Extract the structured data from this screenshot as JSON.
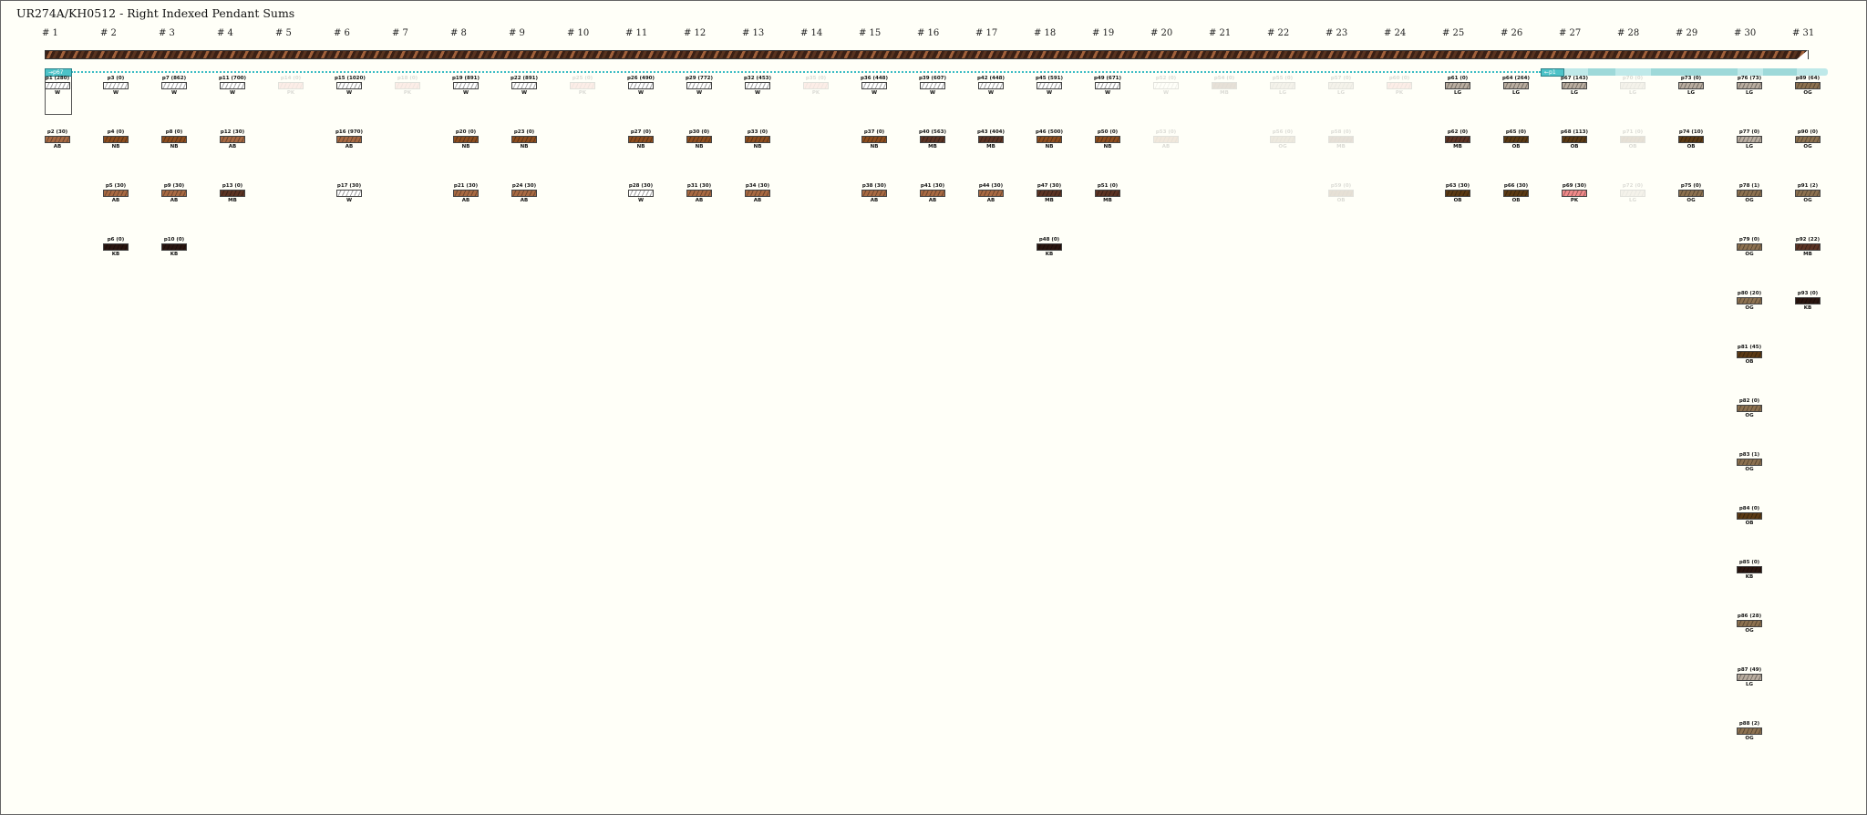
{
  "title": "UR274A/KH0512 - Right Indexed Pendant Sums",
  "links": {
    "p1_to": "→p67",
    "p67_from": "←p1"
  },
  "color_codes": {
    "W": "#ffffff",
    "AB": "#a86a43",
    "NB": "#8e4e1f",
    "MB": "#5c3424",
    "KB": "#2a150f",
    "LG": "#b9ada0",
    "OB": "#5b3a14",
    "OG": "#8c7150",
    "PK": "#f08a8a"
  },
  "accent": "#4dc3c8",
  "columns": [
    {
      "label": "# 1",
      "cords": [
        {
          "id": "p1",
          "v": "280",
          "c": "W"
        },
        {
          "id": "p2",
          "v": "30",
          "c": "AB"
        }
      ]
    },
    {
      "label": "# 2",
      "cords": [
        {
          "id": "p3",
          "v": "0",
          "c": "W"
        },
        {
          "id": "p4",
          "v": "0",
          "c": "NB"
        },
        {
          "id": "p5",
          "v": "30",
          "c": "AB"
        },
        {
          "id": "p6",
          "v": "0",
          "c": "KB"
        }
      ]
    },
    {
      "label": "# 3",
      "cords": [
        {
          "id": "p7",
          "v": "862",
          "c": "W"
        },
        {
          "id": "p8",
          "v": "0",
          "c": "NB"
        },
        {
          "id": "p9",
          "v": "30",
          "c": "AB"
        },
        {
          "id": "p10",
          "v": "0",
          "c": "KB"
        }
      ]
    },
    {
      "label": "# 4",
      "cords": [
        {
          "id": "p11",
          "v": "700",
          "c": "W"
        },
        {
          "id": "p12",
          "v": "30",
          "c": "AB"
        },
        {
          "id": "p13",
          "v": "0",
          "c": "MB"
        }
      ]
    },
    {
      "label": "# 5",
      "faded": true,
      "cords": [
        {
          "id": "p14",
          "v": "0",
          "c": "PK"
        }
      ]
    },
    {
      "label": "# 6",
      "cords": [
        {
          "id": "p15",
          "v": "1020",
          "c": "W"
        },
        {
          "id": "p16",
          "v": "970",
          "c": "AB"
        },
        {
          "id": "p17",
          "v": "30",
          "c": "W"
        }
      ]
    },
    {
      "label": "# 7",
      "faded": true,
      "cords": [
        {
          "id": "p18",
          "v": "0",
          "c": "PK"
        }
      ]
    },
    {
      "label": "# 8",
      "cords": [
        {
          "id": "p19",
          "v": "891",
          "c": "W"
        },
        {
          "id": "p20",
          "v": "0",
          "c": "NB"
        },
        {
          "id": "p21",
          "v": "30",
          "c": "AB"
        }
      ]
    },
    {
      "label": "# 9",
      "cords": [
        {
          "id": "p22",
          "v": "891",
          "c": "W"
        },
        {
          "id": "p23",
          "v": "0",
          "c": "NB"
        },
        {
          "id": "p24",
          "v": "30",
          "c": "AB"
        }
      ]
    },
    {
      "label": "# 10",
      "faded": true,
      "cords": [
        {
          "id": "p25",
          "v": "0",
          "c": "PK"
        }
      ]
    },
    {
      "label": "# 11",
      "cords": [
        {
          "id": "p26",
          "v": "490",
          "c": "W"
        },
        {
          "id": "p27",
          "v": "0",
          "c": "NB"
        },
        {
          "id": "p28",
          "v": "30",
          "c": "W"
        }
      ]
    },
    {
      "label": "# 12",
      "cords": [
        {
          "id": "p29",
          "v": "772",
          "c": "W"
        },
        {
          "id": "p30",
          "v": "0",
          "c": "NB"
        },
        {
          "id": "p31",
          "v": "30",
          "c": "AB"
        }
      ]
    },
    {
      "label": "# 13",
      "cords": [
        {
          "id": "p32",
          "v": "453",
          "c": "W"
        },
        {
          "id": "p33",
          "v": "0",
          "c": "NB"
        },
        {
          "id": "p34",
          "v": "30",
          "c": "AB"
        }
      ]
    },
    {
      "label": "# 14",
      "faded": true,
      "cords": [
        {
          "id": "p35",
          "v": "0",
          "c": "PK"
        }
      ]
    },
    {
      "label": "# 15",
      "cords": [
        {
          "id": "p36",
          "v": "448",
          "c": "W"
        },
        {
          "id": "p37",
          "v": "0",
          "c": "NB"
        },
        {
          "id": "p38",
          "v": "30",
          "c": "AB"
        }
      ]
    },
    {
      "label": "# 16",
      "cords": [
        {
          "id": "p39",
          "v": "607",
          "c": "W"
        },
        {
          "id": "p40",
          "v": "563",
          "c": "MB"
        },
        {
          "id": "p41",
          "v": "30",
          "c": "AB"
        }
      ]
    },
    {
      "label": "# 17",
      "cords": [
        {
          "id": "p42",
          "v": "448",
          "c": "W"
        },
        {
          "id": "p43",
          "v": "404",
          "c": "MB"
        },
        {
          "id": "p44",
          "v": "30",
          "c": "AB"
        }
      ]
    },
    {
      "label": "# 18",
      "cords": [
        {
          "id": "p45",
          "v": "591",
          "c": "W"
        },
        {
          "id": "p46",
          "v": "500",
          "c": "NB"
        },
        {
          "id": "p47",
          "v": "30",
          "c": "MB"
        },
        {
          "id": "p48",
          "v": "0",
          "c": "KB"
        }
      ]
    },
    {
      "label": "# 19",
      "cords": [
        {
          "id": "p49",
          "v": "671",
          "c": "W"
        },
        {
          "id": "p50",
          "v": "0",
          "c": "NB"
        },
        {
          "id": "p51",
          "v": "0",
          "c": "MB"
        }
      ]
    },
    {
      "label": "# 20",
      "faded": true,
      "cords": [
        {
          "id": "p52",
          "v": "0",
          "c": "W"
        },
        {
          "id": "p53",
          "v": "0",
          "c": "AB"
        }
      ]
    },
    {
      "label": "# 21",
      "faded": true,
      "cords": [
        {
          "id": "p54",
          "v": "0",
          "c": "MB"
        }
      ]
    },
    {
      "label": "# 22",
      "faded": true,
      "cords": [
        {
          "id": "p55",
          "v": "0",
          "c": "LG"
        },
        {
          "id": "p56",
          "v": "0",
          "c": "OG"
        }
      ]
    },
    {
      "label": "# 23",
      "faded": true,
      "cords": [
        {
          "id": "p57",
          "v": "0",
          "c": "LG"
        },
        {
          "id": "p58",
          "v": "0",
          "c": "MB"
        },
        {
          "id": "p59",
          "v": "0",
          "c": "OB"
        }
      ]
    },
    {
      "label": "# 24",
      "faded": true,
      "cords": [
        {
          "id": "p60",
          "v": "0",
          "c": "PK"
        }
      ]
    },
    {
      "label": "# 25",
      "cords": [
        {
          "id": "p61",
          "v": "0",
          "c": "LG"
        },
        {
          "id": "p62",
          "v": "0",
          "c": "MB"
        },
        {
          "id": "p63",
          "v": "30",
          "c": "OB"
        }
      ]
    },
    {
      "label": "# 26",
      "cords": [
        {
          "id": "p64",
          "v": "264",
          "c": "LG"
        },
        {
          "id": "p65",
          "v": "0",
          "c": "OB"
        },
        {
          "id": "p66",
          "v": "30",
          "c": "OB"
        }
      ]
    },
    {
      "label": "# 27",
      "cords": [
        {
          "id": "p67",
          "v": "143",
          "c": "LG"
        },
        {
          "id": "p68",
          "v": "113",
          "c": "OB"
        },
        {
          "id": "p69",
          "v": "30",
          "c": "PK"
        }
      ]
    },
    {
      "label": "# 28",
      "faded": true,
      "cords": [
        {
          "id": "p70",
          "v": "0",
          "c": "LG"
        },
        {
          "id": "p71",
          "v": "0",
          "c": "OB"
        },
        {
          "id": "p72",
          "v": "0",
          "c": "LG"
        }
      ]
    },
    {
      "label": "# 29",
      "cords": [
        {
          "id": "p73",
          "v": "0",
          "c": "LG"
        },
        {
          "id": "p74",
          "v": "10",
          "c": "OB"
        },
        {
          "id": "p75",
          "v": "0",
          "c": "OG"
        }
      ]
    },
    {
      "label": "# 30",
      "cords": [
        {
          "id": "p76",
          "v": "73",
          "c": "LG"
        },
        {
          "id": "p77",
          "v": "0",
          "c": "LG"
        },
        {
          "id": "p78",
          "v": "1",
          "c": "OG"
        },
        {
          "id": "p79",
          "v": "0",
          "c": "OG"
        },
        {
          "id": "p80",
          "v": "20",
          "c": "OG"
        },
        {
          "id": "p81",
          "v": "45",
          "c": "OB"
        },
        {
          "id": "p82",
          "v": "0",
          "c": "OG"
        },
        {
          "id": "p83",
          "v": "1",
          "c": "OG"
        },
        {
          "id": "p84",
          "v": "0",
          "c": "OB"
        },
        {
          "id": "p85",
          "v": "0",
          "c": "KB"
        },
        {
          "id": "p86",
          "v": "28",
          "c": "OG"
        },
        {
          "id": "p87",
          "v": "49",
          "c": "LG"
        },
        {
          "id": "p88",
          "v": "2",
          "c": "OG"
        }
      ]
    },
    {
      "label": "# 31",
      "cords": [
        {
          "id": "p89",
          "v": "64",
          "c": "OG"
        },
        {
          "id": "p90",
          "v": "0",
          "c": "OG"
        },
        {
          "id": "p91",
          "v": "2",
          "c": "OG"
        },
        {
          "id": "p92",
          "v": "22",
          "c": "MB"
        },
        {
          "id": "p93",
          "v": "0",
          "c": "KB"
        }
      ]
    }
  ]
}
